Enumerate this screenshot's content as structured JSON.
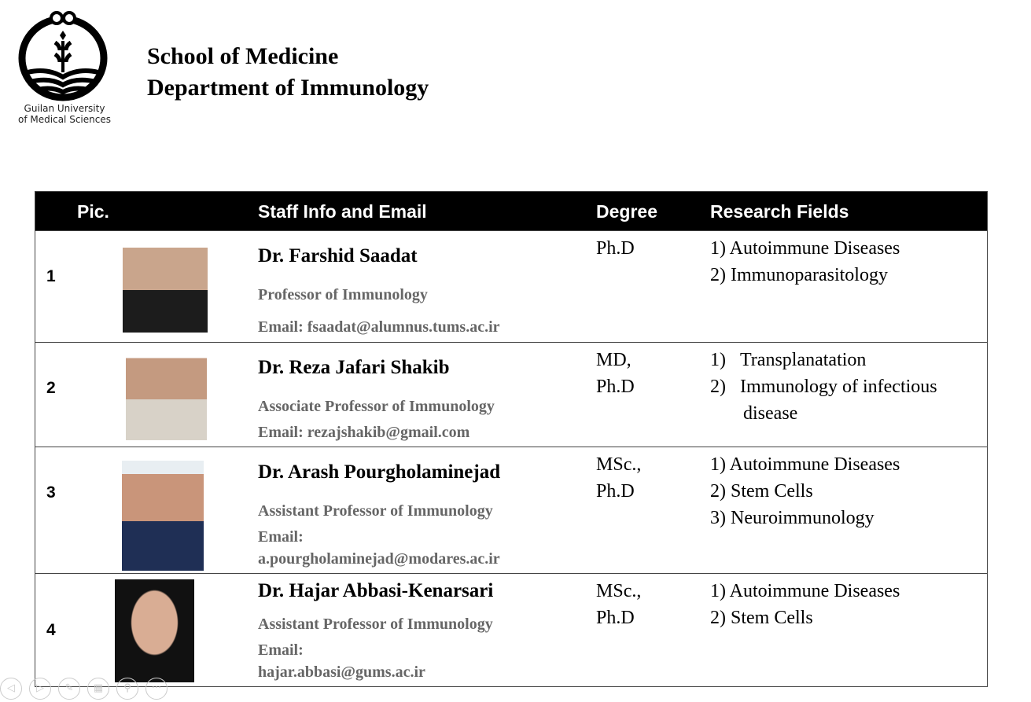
{
  "header": {
    "logo_text_1": "Guilan University",
    "logo_text_2": "of Medical Sciences",
    "title_1": "School of Medicine",
    "title_2": "Department of Immunology"
  },
  "table": {
    "columns": [
      "Pic.",
      "Staff Info and Email",
      "Degree",
      "Research Fields"
    ],
    "rows": [
      {
        "num": "1",
        "name": "Dr. Farshid Saadat",
        "position": "Professor of Immunology",
        "email": "Email: fsaadat@alumnus.tums.ac.ir",
        "degree": [
          "Ph.D"
        ],
        "research": [
          "1) Autoimmune Diseases",
          "2) Immunoparasitology"
        ]
      },
      {
        "num": "2",
        "name": "Dr. Reza Jafari Shakib",
        "position": "Associate Professor of Immunology",
        "email": "Email: rezajshakib@gmail.com",
        "degree": [
          "MD,",
          "Ph.D"
        ],
        "research": [
          "1)   Transplanatation",
          "2)   Immunology of infectious",
          "       disease"
        ]
      },
      {
        "num": "3",
        "name": "Dr. Arash Pourgholaminejad",
        "position": "Assistant Professor of Immunology",
        "email": "Email:",
        "email2": "a.pourgholaminejad@modares.ac.ir",
        "degree": [
          "MSc.,",
          "Ph.D"
        ],
        "research": [
          "1) Autoimmune Diseases",
          "2) Stem Cells",
          "3) Neuroimmunology"
        ]
      },
      {
        "num": "4",
        "name": "Dr. Hajar Abbasi-Kenarsari",
        "position": "Assistant Professor of Immunology",
        "email": "Email:",
        "email2": "hajar.abbasi@gums.ac.ir",
        "degree": [
          "MSc.,",
          "Ph.D"
        ],
        "research": [
          "1) Autoimmune Diseases",
          "2) Stem Cells"
        ]
      }
    ]
  },
  "controls": [
    "previous-icon",
    "next-icon",
    "pen-icon",
    "slides-icon",
    "zoom-icon",
    "more-icon"
  ]
}
